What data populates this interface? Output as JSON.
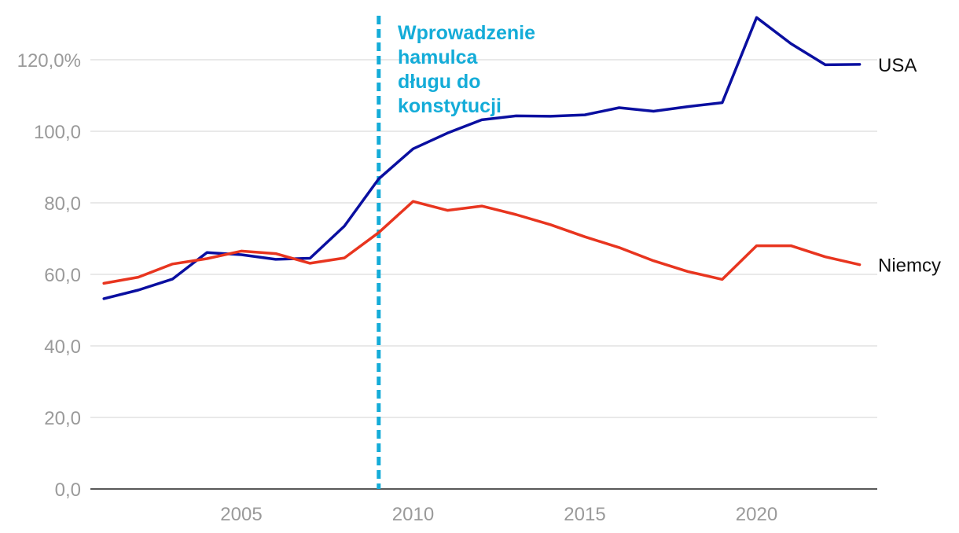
{
  "chart_data": {
    "type": "line",
    "title": "",
    "xlabel": "",
    "ylabel": "",
    "x": [
      2001,
      2002,
      2003,
      2004,
      2005,
      2006,
      2007,
      2008,
      2009,
      2010,
      2011,
      2012,
      2013,
      2014,
      2015,
      2016,
      2017,
      2018,
      2019,
      2020,
      2021,
      2022,
      2023
    ],
    "series": [
      {
        "name": "USA",
        "color": "#0a0fa0",
        "values": [
          53.2,
          55.6,
          58.7,
          66.1,
          65.5,
          64.2,
          64.5,
          73.5,
          86.7,
          95.1,
          99.5,
          103.2,
          104.3,
          104.2,
          104.6,
          106.6,
          105.6,
          106.9,
          108.0,
          131.8,
          124.5,
          118.6,
          118.7
        ]
      },
      {
        "name": "Niemcy",
        "color": "#e8351f",
        "values": [
          57.5,
          59.2,
          62.9,
          64.4,
          66.5,
          65.8,
          63.1,
          64.6,
          71.7,
          80.4,
          77.9,
          79.1,
          76.7,
          73.9,
          70.5,
          67.5,
          63.8,
          60.8,
          58.6,
          68.0,
          68.0,
          64.9,
          62.7
        ]
      }
    ],
    "xlim": [
      2000.6,
      2023.6
    ],
    "ylim": [
      0,
      133
    ],
    "yticks": [
      {
        "value": 0,
        "label": "0,0"
      },
      {
        "value": 20,
        "label": "20,0"
      },
      {
        "value": 40,
        "label": "40,0"
      },
      {
        "value": 60,
        "label": "60,0"
      },
      {
        "value": 80,
        "label": "80,0"
      },
      {
        "value": 100,
        "label": "100,0"
      },
      {
        "value": 120,
        "label": "120,0%"
      }
    ],
    "xticks": [
      {
        "value": 2005,
        "label": "2005"
      },
      {
        "value": 2010,
        "label": "2010"
      },
      {
        "value": 2015,
        "label": "2015"
      },
      {
        "value": 2020,
        "label": "2020"
      }
    ],
    "grid": true,
    "annotation": {
      "x": 2009,
      "color": "#14acd8",
      "lines": [
        "Wprowadzenie",
        "hamulca",
        "długu do",
        "konstytucji"
      ]
    }
  }
}
